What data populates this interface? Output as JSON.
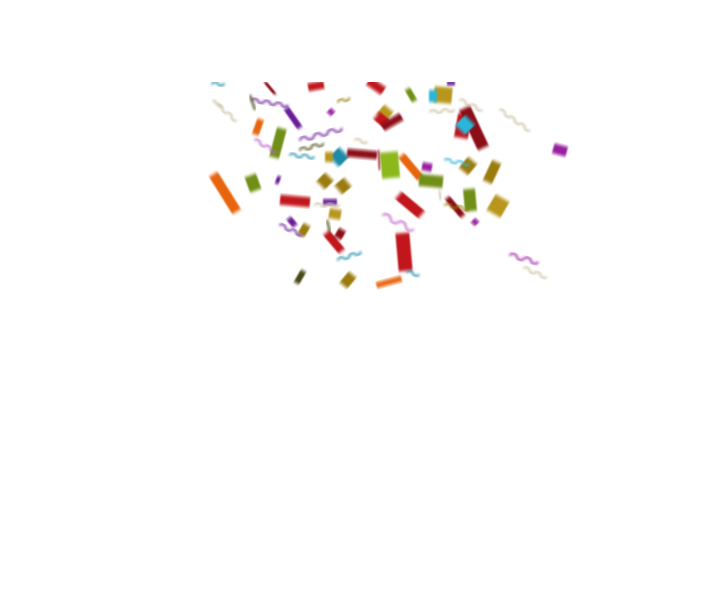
{
  "scene": {
    "description_free": true,
    "background": "#ffffff",
    "palette": {
      "red": "#c0141c",
      "dark_red": "#8b0a14",
      "orange": "#e8650a",
      "olive": "#6f8f12",
      "lime": "#8cb81e",
      "gold": "#b8961a",
      "mustard": "#9a7c10",
      "teal": "#1a8aa8",
      "sky": "#2ab6d8",
      "purple": "#6a1a9a",
      "magenta": "#9a1aa0",
      "pink": "#c060c8",
      "dark_olive": "#4a4a12",
      "beige": "#c8c0a0"
    }
  }
}
